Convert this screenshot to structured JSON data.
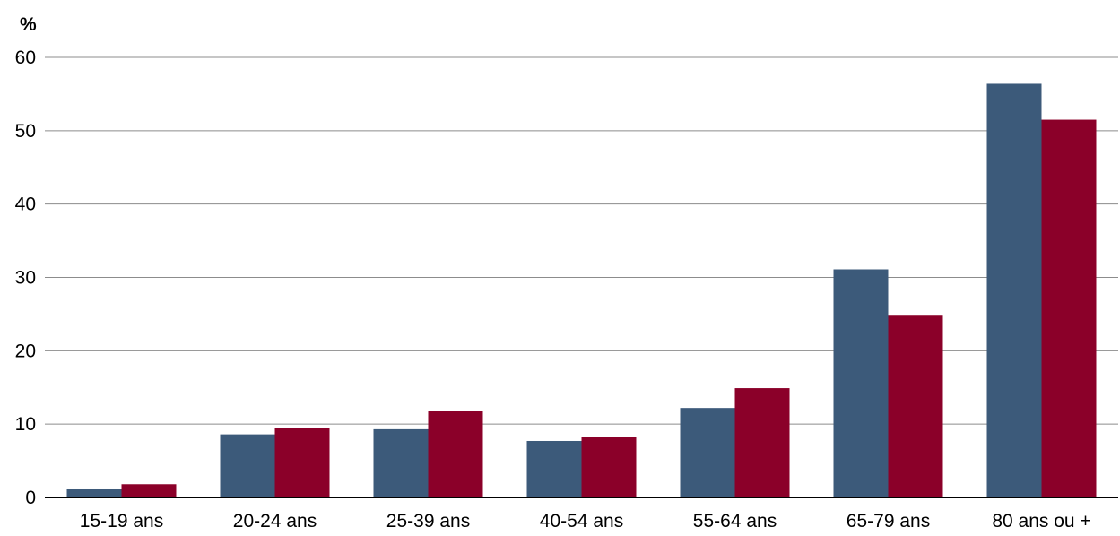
{
  "chart_data": {
    "type": "bar",
    "title": "",
    "unit_label": "%",
    "xlabel": "",
    "ylabel": "",
    "ylim": [
      0,
      60
    ],
    "yticks": [
      "0",
      "10",
      "20",
      "30",
      "40",
      "50",
      "60"
    ],
    "grid": true,
    "categories": [
      "15-19 ans",
      "20-24 ans",
      "25-39 ans",
      "40-54 ans",
      "55-64 ans",
      "65-79 ans",
      "80 ans ou +"
    ],
    "series": [
      {
        "color": "#3c5a7a",
        "values": [
          1.1,
          8.6,
          9.3,
          7.7,
          12.2,
          31.1,
          56.4
        ]
      },
      {
        "color": "#8b0029",
        "values": [
          1.8,
          9.5,
          11.8,
          8.3,
          14.9,
          24.9,
          51.5
        ]
      }
    ]
  }
}
